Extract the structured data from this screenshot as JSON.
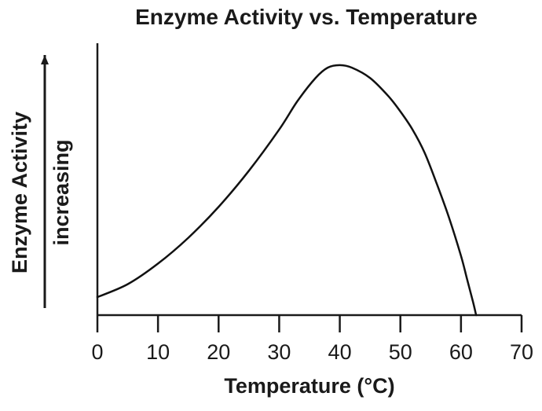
{
  "chart_data": {
    "type": "line",
    "title": "Enzyme Activity vs. Temperature",
    "xlabel": "Temperature (°C)",
    "ylabel": "Enzyme Activity",
    "ylabel_sub": "increasing",
    "x_ticks": [
      "0",
      "10",
      "20",
      "30",
      "40",
      "50",
      "60",
      "70"
    ],
    "xlim": [
      0,
      70
    ],
    "ylim": [
      0,
      100
    ],
    "y_axis_has_values": false,
    "grid": false,
    "series": [
      {
        "color": "#111111",
        "x": [
          0,
          5,
          10,
          15,
          20,
          25,
          30,
          33,
          36,
          38,
          40,
          42,
          45,
          48,
          50,
          52,
          54,
          56,
          58,
          60,
          61,
          62,
          62.5
        ],
        "y": [
          7,
          12,
          20,
          30,
          42,
          56,
          72,
          83,
          92,
          96,
          97,
          96,
          92,
          85,
          79,
          72,
          63,
          51,
          38,
          23,
          14,
          5,
          0
        ]
      }
    ]
  }
}
